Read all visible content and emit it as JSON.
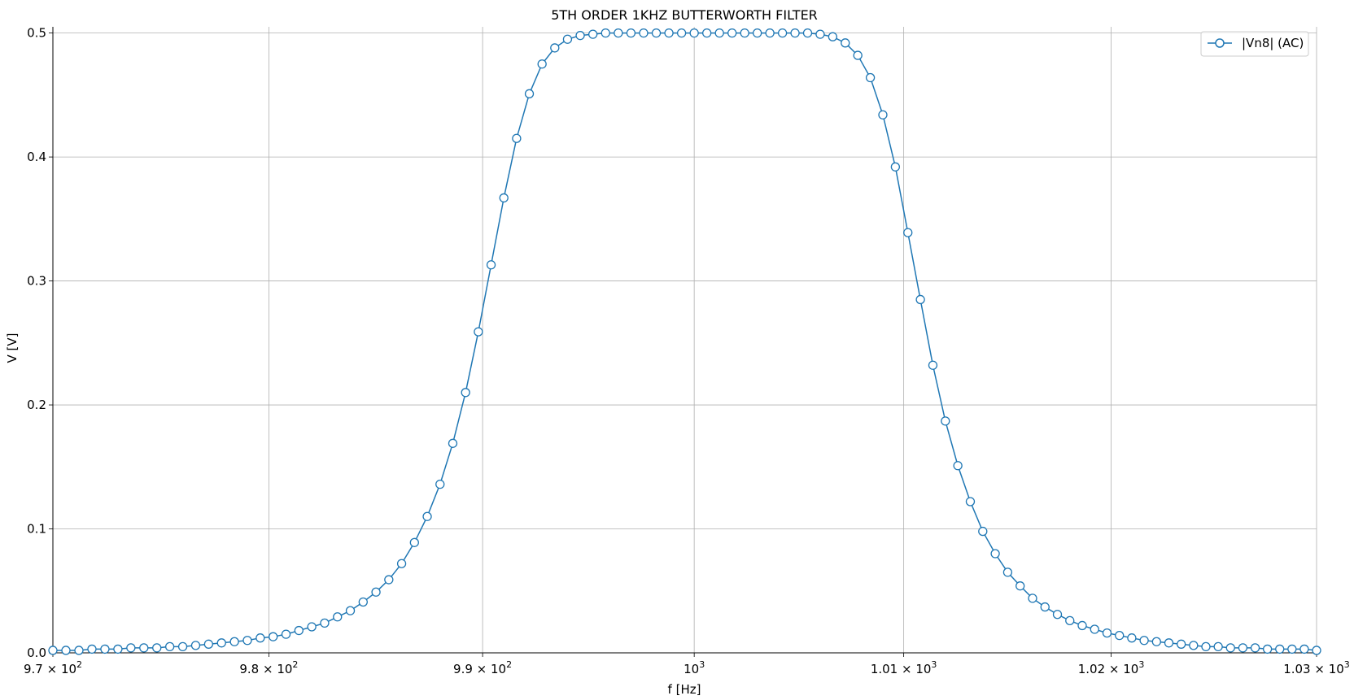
{
  "chart_data": {
    "type": "line",
    "title": "5TH ORDER 1KHZ BUTTERWORTH FILTER",
    "xlabel": "f [Hz]",
    "ylabel": "V [V]",
    "xscale": "log",
    "xlim": [
      970,
      1030
    ],
    "ylim": [
      0,
      0.505
    ],
    "grid": true,
    "legend_position": "top-right",
    "x_ticks": [
      {
        "value": 970,
        "mantissa": "9.7",
        "exp": "2"
      },
      {
        "value": 980,
        "mantissa": "9.8",
        "exp": "2"
      },
      {
        "value": 990,
        "mantissa": "9.9",
        "exp": "2"
      },
      {
        "value": 1000,
        "mantissa": "",
        "exp": "3"
      },
      {
        "value": 1010,
        "mantissa": "1.01",
        "exp": "3"
      },
      {
        "value": 1020,
        "mantissa": "1.02",
        "exp": "3"
      },
      {
        "value": 1030,
        "mantissa": "1.03",
        "exp": "3"
      }
    ],
    "y_ticks": [
      {
        "value": 0.0,
        "label": "0.0"
      },
      {
        "value": 0.1,
        "label": "0.1"
      },
      {
        "value": 0.2,
        "label": "0.2"
      },
      {
        "value": 0.3,
        "label": "0.3"
      },
      {
        "value": 0.4,
        "label": "0.4"
      },
      {
        "value": 0.5,
        "label": "0.5"
      }
    ],
    "series": [
      {
        "name": "|Vn8| (AC)",
        "color": "#1f77b4",
        "marker": "circle-open",
        "x": [
          970.0,
          970.6,
          971.2,
          971.8,
          972.4,
          973.0,
          973.6,
          974.2,
          974.8,
          975.4,
          976.0,
          976.6,
          977.2,
          977.8,
          978.4,
          979.0,
          979.6,
          980.2,
          980.8,
          981.4,
          982.0,
          982.6,
          983.2,
          983.8,
          984.4,
          985.0,
          985.6,
          986.2,
          986.8,
          987.4,
          988.0,
          988.6,
          989.2,
          989.8,
          990.4,
          991.0,
          991.6,
          992.2,
          992.8,
          993.4,
          994.0,
          994.6,
          995.2,
          995.8,
          996.4,
          997.0,
          997.6,
          998.2,
          998.8,
          999.4,
          1000.0,
          1000.6,
          1001.2,
          1001.8,
          1002.4,
          1003.0,
          1003.6,
          1004.2,
          1004.8,
          1005.4,
          1006.0,
          1006.6,
          1007.2,
          1007.8,
          1008.4,
          1009.0,
          1009.6,
          1010.2,
          1010.8,
          1011.4,
          1012.0,
          1012.6,
          1013.2,
          1013.8,
          1014.4,
          1015.0,
          1015.6,
          1016.2,
          1016.8,
          1017.4,
          1018.0,
          1018.6,
          1019.2,
          1019.8,
          1020.4,
          1021.0,
          1021.6,
          1022.2,
          1022.8,
          1023.4,
          1024.0,
          1024.6,
          1025.2,
          1025.8,
          1026.4,
          1027.0,
          1027.6,
          1028.2,
          1028.8,
          1029.4,
          1030.0
        ],
        "y": [
          0.002,
          0.002,
          0.002,
          0.003,
          0.003,
          0.003,
          0.004,
          0.004,
          0.004,
          0.005,
          0.005,
          0.006,
          0.007,
          0.008,
          0.009,
          0.01,
          0.012,
          0.013,
          0.015,
          0.018,
          0.021,
          0.024,
          0.029,
          0.034,
          0.041,
          0.049,
          0.059,
          0.072,
          0.089,
          0.11,
          0.136,
          0.169,
          0.21,
          0.259,
          0.313,
          0.367,
          0.415,
          0.451,
          0.475,
          0.488,
          0.495,
          0.498,
          0.499,
          0.5,
          0.5,
          0.5,
          0.5,
          0.5,
          0.5,
          0.5,
          0.5,
          0.5,
          0.5,
          0.5,
          0.5,
          0.5,
          0.5,
          0.5,
          0.5,
          0.5,
          0.499,
          0.497,
          0.492,
          0.482,
          0.464,
          0.434,
          0.392,
          0.339,
          0.285,
          0.232,
          0.187,
          0.151,
          0.122,
          0.098,
          0.08,
          0.065,
          0.054,
          0.044,
          0.037,
          0.031,
          0.026,
          0.022,
          0.019,
          0.016,
          0.014,
          0.012,
          0.01,
          0.009,
          0.008,
          0.007,
          0.006,
          0.005,
          0.005,
          0.004,
          0.004,
          0.004,
          0.003,
          0.003,
          0.003,
          0.003,
          0.002
        ]
      }
    ]
  }
}
